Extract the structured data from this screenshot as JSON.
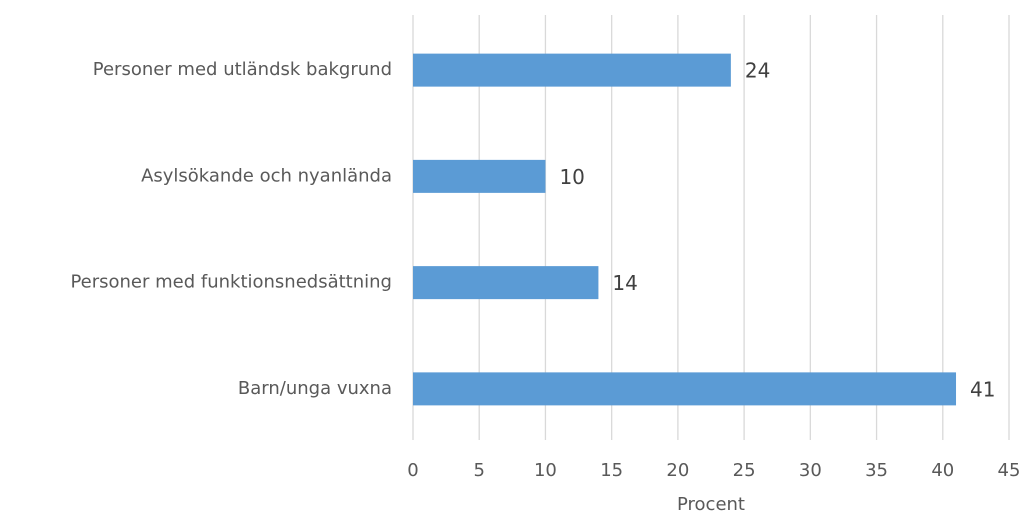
{
  "chart_data": {
    "type": "hbar",
    "categories": [
      "Personer med utländsk bakgrund",
      "Asylsökande och nyanlända",
      "Personer med funktionsnedsättning",
      "Barn/unga vuxna"
    ],
    "values": [
      24,
      10,
      14,
      41
    ],
    "color": "#5b9bd5",
    "x_label": "Procent",
    "xlim": [
      0,
      45
    ],
    "xticks": [
      0,
      5,
      10,
      15,
      20,
      25,
      30,
      35,
      40,
      45
    ],
    "grid": true
  }
}
